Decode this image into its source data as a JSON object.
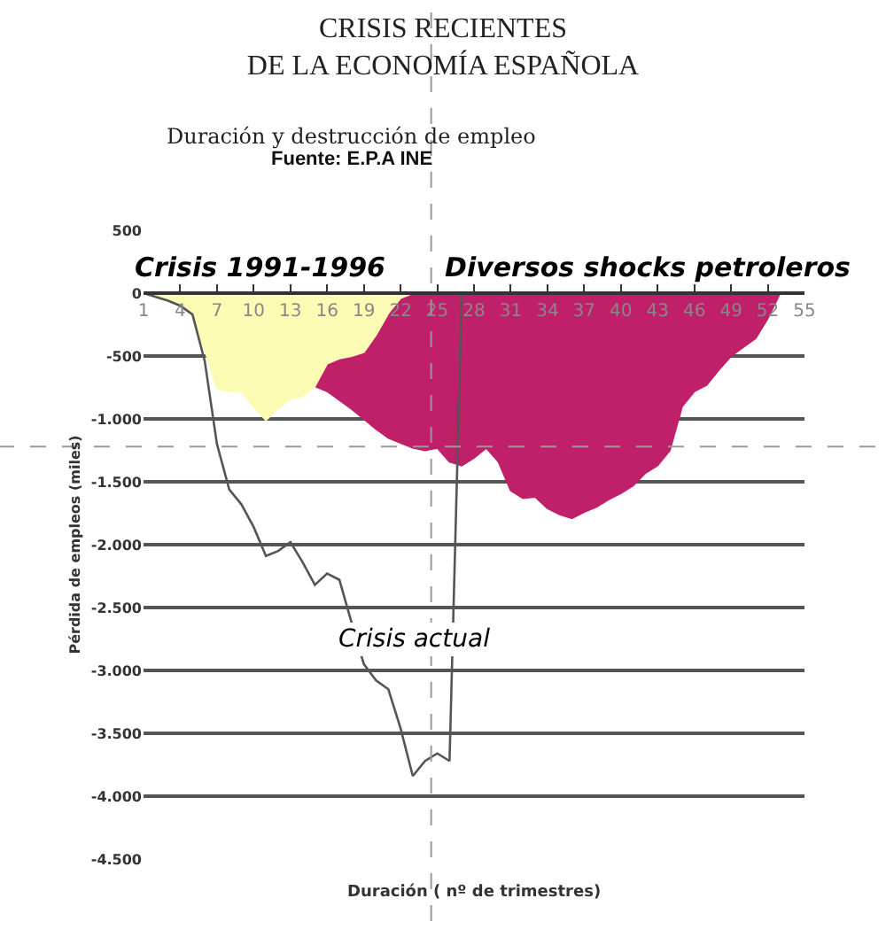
{
  "chart_data": {
    "type": "area",
    "title": "CRISIS RECIENTES\nDE LA ECONOMÍA ESPAÑOLA",
    "subtitle": "Duración y destrucción de empleo",
    "annotations": [
      "Fuente: E.P.A INE"
    ],
    "xlabel": "Duración ( nº de trimestres)",
    "ylabel": "Pérdida de empleos (miles)",
    "series": [
      {
        "name": "Diversos shocks petroleros",
        "color": "#c0206a",
        "x": [
          15,
          16,
          17,
          18,
          19,
          20,
          21,
          22,
          23,
          24,
          25,
          26,
          27,
          28,
          29,
          30,
          31,
          32,
          33,
          34,
          35,
          36,
          37,
          38,
          39,
          40,
          41,
          42,
          43,
          44,
          45,
          46,
          47,
          48,
          49,
          50,
          51,
          52,
          53
        ],
        "values": [
          -740,
          -780,
          -850,
          -920,
          -1000,
          -1080,
          -1150,
          -1190,
          -1230,
          -1250,
          -1230,
          -1340,
          -1370,
          -1310,
          -1230,
          -1340,
          -1570,
          -1630,
          -1620,
          -1710,
          -1760,
          -1790,
          -1740,
          -1700,
          -1640,
          -1590,
          -1530,
          -1430,
          -1370,
          -1250,
          -900,
          -780,
          -730,
          -610,
          -500,
          -430,
          -360,
          -200,
          0
        ]
      },
      {
        "name": "Crisis 1991-1996",
        "color": "#fbfbb4",
        "x": [
          1,
          2,
          3,
          4,
          5,
          6,
          7,
          8,
          9,
          10,
          11,
          12,
          13,
          14,
          15,
          16,
          17,
          18,
          19,
          20,
          21,
          22,
          23
        ],
        "values": [
          0,
          -30,
          -60,
          -100,
          -170,
          -450,
          -760,
          -780,
          -780,
          -900,
          -1010,
          -920,
          -840,
          -820,
          -740,
          -560,
          -520,
          -500,
          -470,
          -330,
          -160,
          -40,
          0
        ]
      },
      {
        "name": "Crisis actual",
        "color": "#555555",
        "type": "line",
        "x": [
          1,
          2,
          3,
          4,
          5,
          6,
          7,
          8,
          9,
          10,
          11,
          12,
          13,
          14,
          15,
          16,
          17,
          18,
          19,
          20,
          21,
          22,
          23,
          24,
          25,
          26,
          27
        ],
        "values": [
          0,
          -30,
          -60,
          -100,
          -170,
          -540,
          -1200,
          -1560,
          -1680,
          -1860,
          -2090,
          -2050,
          -1980,
          -2140,
          -2320,
          -2230,
          -2280,
          -2620,
          -2950,
          -3080,
          -3150,
          -3460,
          -3840,
          -3720,
          -3660,
          -3720,
          0
        ]
      }
    ],
    "xlim": [
      1,
      55
    ],
    "xticks": [
      1,
      4,
      7,
      10,
      13,
      16,
      19,
      22,
      25,
      28,
      31,
      34,
      37,
      40,
      43,
      46,
      49,
      52,
      55
    ],
    "ylim": [
      -4500,
      500
    ],
    "yticks": [
      500,
      0,
      -500,
      {
        "value": -1000,
        "label": "-1.000"
      },
      {
        "value": -1500,
        "label": "-1.500"
      },
      {
        "value": -2000,
        "label": "-2.000"
      },
      {
        "value": -2500,
        "label": "-2.500"
      },
      {
        "value": -3000,
        "label": "-3.000"
      },
      {
        "value": -3500,
        "label": "-3.500"
      },
      {
        "value": -4000,
        "label": "-4.000"
      },
      {
        "value": -4500,
        "label": "-4.500"
      }
    ],
    "grid": "y",
    "ref_lines": [
      {
        "axis": "x",
        "value": 24.5,
        "color": "#999999",
        "line_style": "dashed"
      },
      {
        "axis": "y",
        "value": -1220,
        "color": "#999999",
        "line_style": "dashed"
      }
    ]
  }
}
